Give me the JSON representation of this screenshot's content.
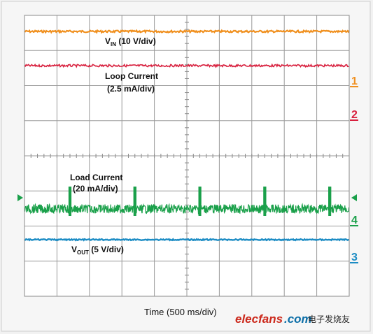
{
  "chart_data": {
    "type": "line",
    "x_unit": "ms",
    "xlabel": "Time (500 ms/div)",
    "xlim": [
      0,
      5000
    ],
    "series": [
      {
        "channel": "1",
        "label_main": "V",
        "label_sub": "IN",
        "label_rest": " (10 V/div)",
        "color": "#f0901f",
        "kind": "flat"
      },
      {
        "channel": "2",
        "label": "Loop Current",
        "label_line2": "(2.5 mA/div)",
        "color": "#d8203e",
        "kind": "flat"
      },
      {
        "channel": "4",
        "label": "Load Current",
        "label_line2": "(20 mA/div)",
        "color": "#1aa04a",
        "kind": "pulsed",
        "pulse_times": [
          700,
          1700,
          2700,
          3700,
          4700
        ]
      },
      {
        "channel": "3",
        "label_main": "V",
        "label_sub": "OUT",
        "label_rest": " (5 V/div)",
        "color": "#1c8cc4",
        "kind": "flat"
      }
    ],
    "grid": true,
    "divisions": {
      "x": 10,
      "y": 8
    }
  },
  "watermark": {
    "brand1": "elecfans",
    "brand2": ".com",
    "cn": "电子发烧友"
  }
}
